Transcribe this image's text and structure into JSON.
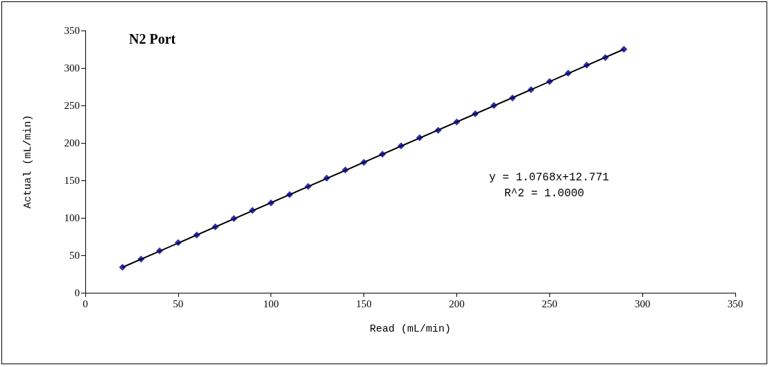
{
  "chart_data": {
    "type": "scatter",
    "title": "N2 Port",
    "xlabel": "Read (mL/min)",
    "ylabel": "Actual (mL/min)",
    "annotations": [
      "y = 1.0768x+12.771",
      "R^2 = 1.0000"
    ],
    "x": [
      20,
      30,
      40,
      50,
      60,
      70,
      80,
      90,
      100,
      110,
      120,
      130,
      140,
      150,
      160,
      170,
      180,
      190,
      200,
      210,
      220,
      230,
      240,
      250,
      260,
      270,
      280,
      290
    ],
    "series": [
      {
        "color": "#000080",
        "marker": "diamond",
        "values": [
          34,
          45,
          56,
          67,
          77,
          88,
          99,
          110,
          120,
          131,
          142,
          153,
          164,
          174,
          185,
          196,
          207,
          217,
          228,
          239,
          250,
          260,
          271,
          282,
          293,
          304,
          314,
          325
        ]
      },
      {
        "type": "line",
        "color": "#000000",
        "marker": "none",
        "line_style": "solid",
        "x": [
          20,
          290
        ],
        "values": [
          34,
          325
        ]
      }
    ],
    "xlim": [
      0,
      350
    ],
    "xticks": [
      0,
      50,
      100,
      150,
      200,
      250,
      300,
      350
    ],
    "ylim": [
      0,
      350
    ],
    "yticks": [
      0,
      50,
      100,
      150,
      200,
      250,
      300,
      350
    ],
    "grid": false
  }
}
